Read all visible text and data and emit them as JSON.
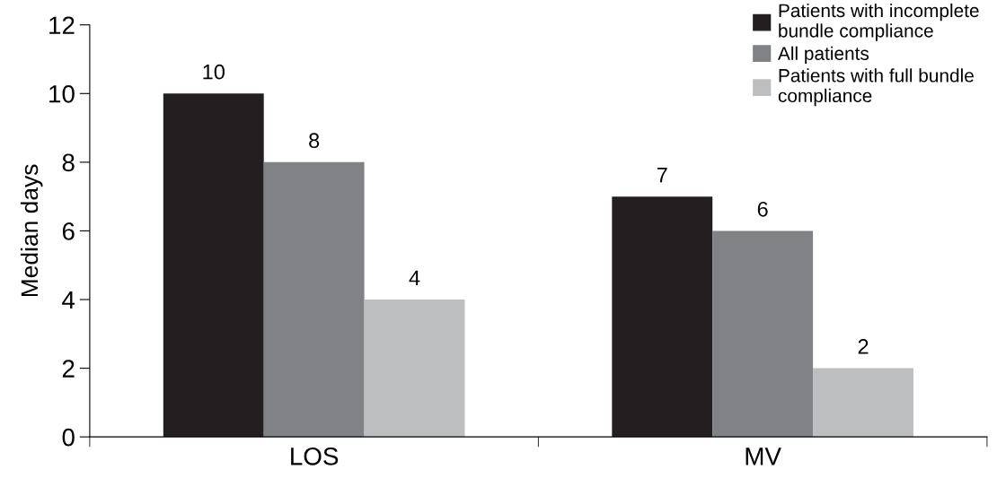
{
  "chart_data": {
    "type": "bar",
    "ylabel": "Median days",
    "categories": [
      "LOS",
      "MV"
    ],
    "series": [
      {
        "name": "Patients with incomplete\nbundle compliance",
        "color": "#231f20",
        "values": [
          10,
          7
        ]
      },
      {
        "name": "All patients",
        "color": "#808285",
        "values": [
          8,
          6
        ]
      },
      {
        "name": "Patients with full bundle\ncompliance",
        "color": "#bcbec0",
        "values": [
          4,
          2
        ]
      }
    ],
    "ylim": [
      0,
      12
    ],
    "yticks": [
      0,
      2,
      4,
      6,
      8,
      10,
      12
    ],
    "data_labels": true,
    "legend": "top right",
    "grid": false
  }
}
